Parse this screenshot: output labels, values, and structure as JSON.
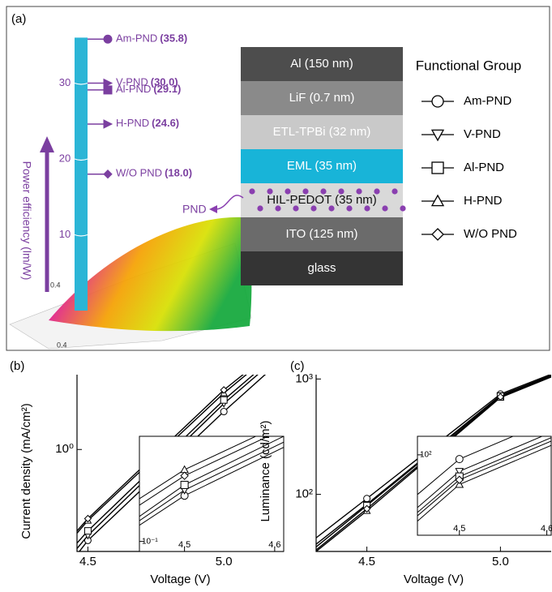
{
  "panels": [
    "(a)",
    "(b)",
    "(c)"
  ],
  "floor_labels": [
    "0.4",
    "0.4"
  ],
  "device": {
    "pnd_label": "PND",
    "layers": [
      {
        "label": "Al (150 nm)",
        "fill": "#4d4d4d",
        "text_color": "#ffffff"
      },
      {
        "label": "LiF (0.7 nm)",
        "fill": "#8a8a8a",
        "text_color": "#ffffff"
      },
      {
        "label": "ETL-TPBi (32 nm)",
        "fill": "#c9c9c9",
        "text_color": "#ffffff"
      },
      {
        "label": "EML (35 nm)",
        "fill": "#18b4d8",
        "text_color": "#ffffff"
      },
      {
        "label": "HIL-PEDOT (35 nm)",
        "fill": "#d9d9d9",
        "text_color": "#111111"
      },
      {
        "label": "ITO (125 nm)",
        "fill": "#6b6b6b",
        "text_color": "#ffffff"
      },
      {
        "label": "glass",
        "fill": "#343434",
        "text_color": "#ffffff"
      }
    ]
  },
  "legend": {
    "title": "Functional Group"
  },
  "chart_data": [
    {
      "type": "column-scale",
      "y_label": "Power efficiency (lm/W)",
      "color": "#7b3fa0",
      "column_color": "#2bb5d6",
      "categories": [
        "Am-PND",
        "V-PND",
        "Al-PND",
        "H-PND",
        "W/O PND"
      ],
      "markers": [
        "circle",
        "triangle-right",
        "square",
        "triangle-right",
        "diamond"
      ],
      "values": [
        35.8,
        30.0,
        29.1,
        24.6,
        18.0
      ],
      "value_labels": [
        "(35.8)",
        "(30.0)",
        "(29.1)",
        "(24.6)",
        "(18.0)"
      ],
      "ylim": [
        0,
        36
      ],
      "yticks": [
        10,
        20,
        30
      ]
    },
    {
      "type": "line",
      "x_label": "Voltage (V)",
      "y_label": "Current density (mA/cm²)",
      "log_y": true,
      "color": "#000000",
      "xlim": [
        4.46,
        5.22
      ],
      "xticks": [
        4.5,
        {
          "value": 5,
          "label": "5.0"
        }
      ],
      "ylim": [
        0.24,
        2.85
      ],
      "yticks": [
        {
          "value": 1,
          "label": "10⁰"
        }
      ],
      "x": [
        4.46,
        4.5,
        5.0,
        5.22
      ],
      "series": [
        {
          "name": "Am-PND",
          "marker": "circle",
          "values": [
            0.23,
            0.28,
            1.7,
            3.6
          ]
        },
        {
          "name": "V-PND",
          "marker": "triangle-down",
          "values": [
            0.25,
            0.3,
            1.9,
            3.9
          ]
        },
        {
          "name": "Al-PND",
          "marker": "square",
          "values": [
            0.27,
            0.32,
            2.0,
            4.1
          ]
        },
        {
          "name": "H-PND",
          "marker": "triangle-up",
          "values": [
            0.31,
            0.37,
            2.2,
            4.4
          ]
        },
        {
          "name": "W/O PND",
          "marker": "diamond",
          "values": [
            0.32,
            0.38,
            2.3,
            4.5
          ]
        }
      ]
    },
    {
      "type": "line",
      "inset": true,
      "log_y": true,
      "color": "#000000",
      "xlim": [
        4.45,
        4.61
      ],
      "xticks": [
        4.5,
        4.6
      ],
      "ylim": [
        0.085,
        0.55
      ],
      "yticks": [
        {
          "value": 0.1,
          "label": "10⁻¹"
        }
      ],
      "x": [
        4.45,
        4.5,
        4.61
      ],
      "series": [
        {
          "name": "Am-PND",
          "marker": "circle",
          "values": [
            0.13,
            0.21,
            0.46
          ]
        },
        {
          "name": "V-PND",
          "marker": "triangle-down",
          "values": [
            0.14,
            0.23,
            0.5
          ]
        },
        {
          "name": "Al-PND",
          "marker": "square",
          "values": [
            0.15,
            0.25,
            0.55
          ]
        },
        {
          "name": "H-PND",
          "marker": "triangle-up",
          "values": [
            0.2,
            0.32,
            0.68
          ]
        },
        {
          "name": "W/O PND",
          "marker": "diamond",
          "values": [
            0.18,
            0.29,
            0.62
          ]
        }
      ]
    },
    {
      "type": "line",
      "x_label": "Voltage (V)",
      "y_label": "Luminance (cd/m²)",
      "log_y": true,
      "color": "#000000",
      "xlim": [
        4.31,
        5.19
      ],
      "xticks": [
        4.5,
        {
          "value": 5,
          "label": "5.0"
        }
      ],
      "ylim": [
        32,
        1090
      ],
      "yticks": [
        {
          "value": 100,
          "label": "10²"
        },
        {
          "value": 1000,
          "label": "10³"
        }
      ],
      "x": [
        4.31,
        4.5,
        5.0,
        5.19
      ],
      "series": [
        {
          "name": "Am-PND",
          "marker": "circle",
          "values": [
            42,
            92,
            740,
            1100
          ]
        },
        {
          "name": "V-PND",
          "marker": "triangle-down",
          "values": [
            37,
            82,
            720,
            1080
          ]
        },
        {
          "name": "Al-PND",
          "marker": "square",
          "values": [
            35,
            80,
            710,
            1060
          ]
        },
        {
          "name": "H-PND",
          "marker": "triangle-up",
          "values": [
            32,
            72,
            690,
            1040
          ]
        },
        {
          "name": "W/O PND",
          "marker": "diamond",
          "values": [
            33,
            75,
            700,
            1050
          ]
        }
      ]
    },
    {
      "type": "line",
      "inset": true,
      "log_y": true,
      "color": "#000000",
      "xlim": [
        4.452,
        4.605
      ],
      "xticks": [
        4.5,
        4.6
      ],
      "ylim": [
        38,
        125
      ],
      "yticks": [
        {
          "value": 100,
          "label": "10²"
        }
      ],
      "x": [
        4.452,
        4.5,
        4.605
      ],
      "series": [
        {
          "name": "Am-PND",
          "marker": "circle",
          "values": [
            62,
            95,
            152
          ]
        },
        {
          "name": "V-PND",
          "marker": "triangle-down",
          "values": [
            53,
            82,
            131
          ]
        },
        {
          "name": "Al-PND",
          "marker": "square",
          "values": [
            50,
            77,
            123
          ]
        },
        {
          "name": "H-PND",
          "marker": "triangle-up",
          "values": [
            45,
            70,
            112
          ]
        },
        {
          "name": "W/O PND",
          "marker": "diamond",
          "values": [
            48,
            74,
            118
          ]
        }
      ]
    }
  ]
}
